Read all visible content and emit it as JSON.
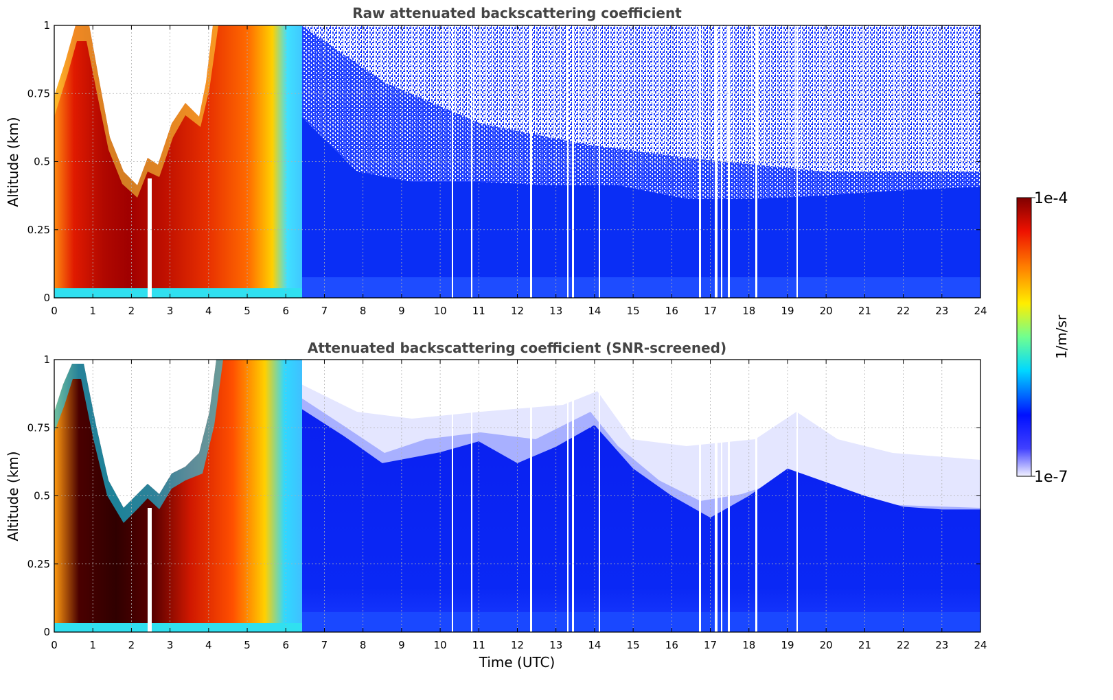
{
  "chart_data": [
    {
      "type": "heatmap",
      "title": "Raw attenuated backscattering coefficient",
      "xlabel": "",
      "ylabel": "Altitude (km)",
      "xlim": [
        0,
        24
      ],
      "ylim": [
        0,
        1
      ],
      "x_ticks": [
        "0",
        "1",
        "2",
        "3",
        "4",
        "5",
        "6",
        "7",
        "8",
        "9",
        "10",
        "11",
        "12",
        "13",
        "14",
        "15",
        "16",
        "17",
        "18",
        "19",
        "20",
        "21",
        "22",
        "23",
        "24"
      ],
      "y_ticks": [
        "0",
        "0.25",
        "0.5",
        "0.75",
        "1"
      ],
      "grid": true,
      "data_note": "Log-scaled backscatter; high values (1e-5 to 1e-4) below ~0.9 km from 0 to 6.4 UTC, low values (~1e-6) afterwards with noisy returns above 0.4 km",
      "regions": [
        {
          "x_range": [
            0,
            6.4
          ],
          "y_range": [
            0,
            1
          ],
          "level": "high"
        },
        {
          "x_range": [
            6.4,
            24
          ],
          "y_range": [
            0,
            0.45
          ],
          "level": "low"
        },
        {
          "x_range": [
            6.4,
            24
          ],
          "y_range": [
            0.45,
            1
          ],
          "level": "noise"
        }
      ]
    },
    {
      "type": "heatmap",
      "title": "Attenuated backscattering coefficient (SNR-screened)",
      "xlabel": "Time (UTC)",
      "ylabel": "Altitude (km)",
      "xlim": [
        0,
        24
      ],
      "ylim": [
        0,
        1
      ],
      "x_ticks": [
        "0",
        "1",
        "2",
        "3",
        "4",
        "5",
        "6",
        "7",
        "8",
        "9",
        "10",
        "11",
        "12",
        "13",
        "14",
        "15",
        "16",
        "17",
        "18",
        "19",
        "20",
        "21",
        "22",
        "23",
        "24"
      ],
      "y_ticks": [
        "0",
        "0.25",
        "0.5",
        "0.75",
        "1"
      ],
      "grid": true,
      "data_note": "Same field after SNR screening; low-SNR pixels removed above a boundary layer top decreasing from ~0.75 km at 7 UTC to ~0.45 km at 24 UTC",
      "boundary_top_km": [
        [
          6.4,
          0.82
        ],
        [
          7.5,
          0.72
        ],
        [
          8.5,
          0.62
        ],
        [
          10,
          0.66
        ],
        [
          11,
          0.7
        ],
        [
          12,
          0.62
        ],
        [
          13,
          0.68
        ],
        [
          14,
          0.76
        ],
        [
          15,
          0.6
        ],
        [
          16,
          0.5
        ],
        [
          17,
          0.42
        ],
        [
          18,
          0.5
        ],
        [
          19,
          0.6
        ],
        [
          20,
          0.55
        ],
        [
          21,
          0.5
        ],
        [
          22,
          0.46
        ],
        [
          23,
          0.45
        ],
        [
          24,
          0.45
        ]
      ]
    }
  ],
  "colorbar": {
    "label": "1/m/sr",
    "max_label": "1e-4",
    "min_label": "1e-7",
    "colormap": "jet",
    "scale": "log"
  },
  "colors": {
    "axis": "#000000",
    "grid": "#b0b0b0",
    "title": "#444444",
    "high": "#d01c00",
    "low": "#0a2cff",
    "faint": "#dde0ff"
  }
}
